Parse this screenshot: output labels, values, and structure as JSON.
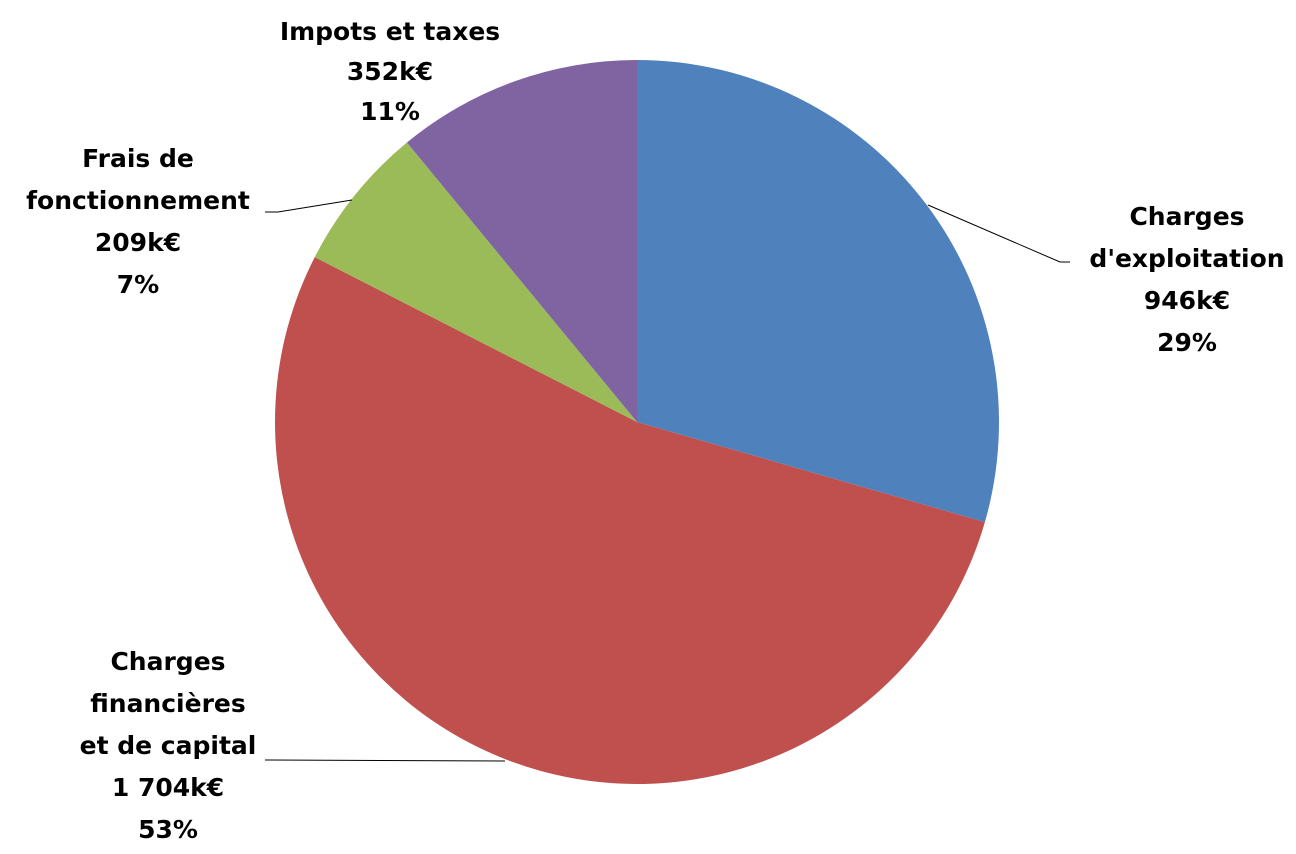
{
  "chart_data": {
    "type": "pie",
    "series": [
      {
        "values": [
          {
            "label_lines": [
              "Charges",
              "d'exploitation"
            ],
            "value": 946,
            "value_text": "946k€",
            "percent": 29,
            "percent_text": "29%",
            "color": "#4F81BD"
          },
          {
            "label_lines": [
              "Charges",
              "financières",
              "et de capital"
            ],
            "value": 1704,
            "value_text": "1 704k€",
            "percent": 53,
            "percent_text": "53%",
            "color": "#C0504D"
          },
          {
            "label_lines": [
              "Frais de",
              "fonctionnement"
            ],
            "value": 209,
            "value_text": "209k€",
            "percent": 7,
            "percent_text": "7%",
            "color": "#9BBB59"
          },
          {
            "label_lines": [
              "Impots et taxes"
            ],
            "value": 352,
            "value_text": "352k€",
            "percent": 11,
            "percent_text": "11%",
            "color": "#8064A2"
          }
        ]
      }
    ],
    "start_angle": "12 o'clock",
    "direction": "clockwise",
    "legend": "none",
    "data_labels": "outside with leader lines"
  }
}
